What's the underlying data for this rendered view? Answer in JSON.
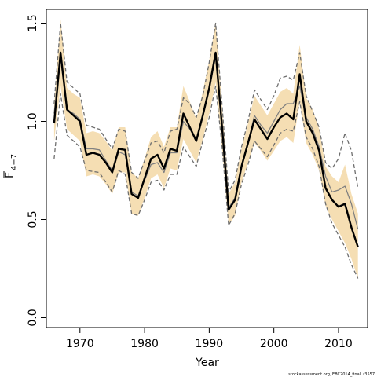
{
  "chart_data": {
    "type": "line",
    "xlabel": "Year",
    "ylabel": "F",
    "ylabel_sub": "4−7",
    "xlim": [
      1964.8,
      2014.5
    ],
    "ylim": [
      -0.05,
      1.57
    ],
    "xticks": [
      "1970",
      "1980",
      "1990",
      "2000",
      "2010"
    ],
    "yticks": [
      "0.0",
      "0.5",
      "1.0",
      "1.5"
    ],
    "footer": "stockassessment.org, EBC2014_final, r3557",
    "colors": {
      "band": "#f5deb3",
      "estimate": "#000000",
      "alt_line": "#808080",
      "ci_dashed": "#6e6e6e"
    },
    "x": [
      1966,
      1967,
      1968,
      1969,
      1970,
      1971,
      1972,
      1973,
      1974,
      1975,
      1976,
      1977,
      1978,
      1979,
      1980,
      1981,
      1982,
      1983,
      1984,
      1985,
      1986,
      1987,
      1988,
      1989,
      1990,
      1991,
      1992,
      1993,
      1994,
      1995,
      1996,
      1997,
      1998,
      1999,
      2000,
      2001,
      2002,
      2003,
      2004,
      2005,
      2006,
      2007,
      2008,
      2009,
      2010,
      2011,
      2012,
      2013
    ],
    "series": [
      {
        "values": [
          0.99,
          1.35,
          1.06,
          1.03,
          1.0,
          0.83,
          0.84,
          0.83,
          0.79,
          0.74,
          0.86,
          0.855,
          0.63,
          0.61,
          0.71,
          0.81,
          0.83,
          0.76,
          0.86,
          0.85,
          1.04,
          0.97,
          0.9,
          1.03,
          1.17,
          1.35,
          0.97,
          0.55,
          0.6,
          0.77,
          0.89,
          1.01,
          0.96,
          0.91,
          0.97,
          1.02,
          1.04,
          1.01,
          1.24,
          1.0,
          0.94,
          0.85,
          0.66,
          0.6,
          0.565,
          0.58,
          0.46,
          0.36
        ]
      },
      {
        "values": [
          1.04,
          1.32,
          1.06,
          1.04,
          1.01,
          0.86,
          0.86,
          0.855,
          0.8,
          0.75,
          0.845,
          0.83,
          0.64,
          0.62,
          0.7,
          0.78,
          0.79,
          0.74,
          0.84,
          0.84,
          1.0,
          0.96,
          0.91,
          1.02,
          1.16,
          1.33,
          0.98,
          0.56,
          0.61,
          0.78,
          0.89,
          1.03,
          0.98,
          0.94,
          1.0,
          1.06,
          1.09,
          1.09,
          1.18,
          1.02,
          0.96,
          0.87,
          0.72,
          0.64,
          0.65,
          0.67,
          0.58,
          0.45
        ]
      },
      {
        "values": [
          0.81,
          1.14,
          0.93,
          0.9,
          0.87,
          0.75,
          0.745,
          0.74,
          0.69,
          0.64,
          0.75,
          0.73,
          0.53,
          0.52,
          0.6,
          0.69,
          0.7,
          0.65,
          0.73,
          0.73,
          0.87,
          0.82,
          0.77,
          0.9,
          1.02,
          1.18,
          0.87,
          0.47,
          0.53,
          0.68,
          0.78,
          0.9,
          0.86,
          0.82,
          0.88,
          0.94,
          0.96,
          0.95,
          1.1,
          0.92,
          0.86,
          0.77,
          0.58,
          0.48,
          0.42,
          0.36,
          0.27,
          0.2
        ]
      },
      {
        "values": [
          1.09,
          1.5,
          1.2,
          1.17,
          1.14,
          0.98,
          0.97,
          0.96,
          0.91,
          0.86,
          0.96,
          0.95,
          0.74,
          0.71,
          0.8,
          0.89,
          0.9,
          0.84,
          0.95,
          0.96,
          1.12,
          1.09,
          1.02,
          1.13,
          1.3,
          1.5,
          1.08,
          0.64,
          0.7,
          0.87,
          1.0,
          1.16,
          1.11,
          1.06,
          1.13,
          1.22,
          1.23,
          1.21,
          1.35,
          1.13,
          1.05,
          0.97,
          0.79,
          0.76,
          0.81,
          0.94,
          0.85,
          0.66
        ]
      }
    ],
    "band": {
      "lower": [
        0.9,
        1.18,
        0.96,
        0.93,
        0.9,
        0.72,
        0.73,
        0.72,
        0.68,
        0.63,
        0.74,
        0.74,
        0.53,
        0.52,
        0.61,
        0.71,
        0.73,
        0.66,
        0.76,
        0.75,
        0.91,
        0.85,
        0.79,
        0.91,
        1.04,
        1.2,
        0.86,
        0.47,
        0.52,
        0.69,
        0.79,
        0.89,
        0.85,
        0.8,
        0.85,
        0.9,
        0.92,
        0.89,
        1.1,
        0.89,
        0.83,
        0.75,
        0.57,
        0.5,
        0.44,
        0.38,
        0.3,
        0.2
      ],
      "upper": [
        1.08,
        1.52,
        1.17,
        1.14,
        1.12,
        0.94,
        0.95,
        0.94,
        0.9,
        0.85,
        0.97,
        0.97,
        0.74,
        0.71,
        0.81,
        0.92,
        0.95,
        0.87,
        0.97,
        0.97,
        1.18,
        1.1,
        1.01,
        1.15,
        1.31,
        1.5,
        1.08,
        0.63,
        0.69,
        0.86,
        0.99,
        1.13,
        1.08,
        1.03,
        1.09,
        1.15,
        1.17,
        1.14,
        1.39,
        1.12,
        1.06,
        0.96,
        0.77,
        0.72,
        0.69,
        0.78,
        0.63,
        0.53
      ]
    }
  }
}
